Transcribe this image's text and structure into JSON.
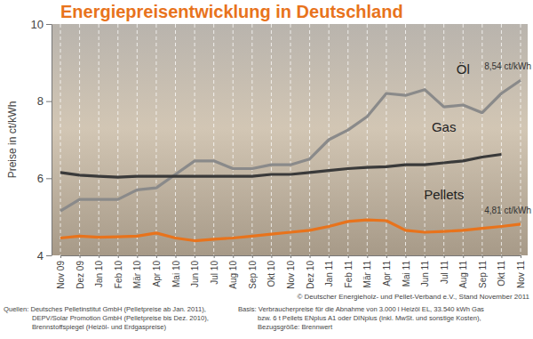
{
  "chart_data": {
    "type": "line",
    "title": "Energiepreisentwicklung in Deutschland",
    "y_label": "Preise in ct/kWh",
    "categories": [
      "Nov 09",
      "Dez 09",
      "Jan 10",
      "Feb 10",
      "Mär 10",
      "Apr 10",
      "Mai 10",
      "Jun 10",
      "Jul 10",
      "Aug 10",
      "Sep 10",
      "Okt 10",
      "Nov 10",
      "Dez 10",
      "Jan 11",
      "Feb 11",
      "Mär 11",
      "Apr 11",
      "Mai 11",
      "Jun 11",
      "Jul 11",
      "Aug 11",
      "Sep 11",
      "Okt 11",
      "Nov 11"
    ],
    "series": [
      {
        "name": "Öl",
        "color": "#8a8a8a",
        "values": [
          5.15,
          5.45,
          5.45,
          5.45,
          5.7,
          5.75,
          6.1,
          6.45,
          6.45,
          6.25,
          6.25,
          6.35,
          6.35,
          6.5,
          7.0,
          7.25,
          7.6,
          8.2,
          8.15,
          8.3,
          7.85,
          7.9,
          7.7,
          8.2,
          8.54
        ]
      },
      {
        "name": "Gas",
        "color": "#3a3a3a",
        "values": [
          6.15,
          6.08,
          6.05,
          6.03,
          6.05,
          6.05,
          6.05,
          6.05,
          6.05,
          6.05,
          6.05,
          6.1,
          6.1,
          6.15,
          6.2,
          6.25,
          6.28,
          6.3,
          6.35,
          6.35,
          6.4,
          6.45,
          6.55,
          6.62,
          null
        ]
      },
      {
        "name": "Pellets",
        "color": "#e8731c",
        "values": [
          4.45,
          4.5,
          4.47,
          4.48,
          4.5,
          4.58,
          4.45,
          4.38,
          4.42,
          4.45,
          4.5,
          4.55,
          4.6,
          4.65,
          4.75,
          4.88,
          4.92,
          4.9,
          4.65,
          4.6,
          4.62,
          4.65,
          4.7,
          4.75,
          4.81
        ]
      }
    ],
    "ylim": [
      4,
      10
    ],
    "yticks": [
      4,
      6,
      8,
      10
    ],
    "grid": true,
    "annotations": [
      "8,54 ct/kWh",
      "4,81 ct/kWh"
    ],
    "copyright": "© Deutscher Energieholz- und Pellet-Verband e.V., Stand November 2011",
    "sources": [
      "Quellen: Deutsches Pelletinstitut GmbH (Pelletpreise ab Jan. 2011),",
      "DEPV/Solar Promotion GmbH (Pelletpreise bis Dez. 2010),",
      "Brennstoffspiegel (Heizöl- und Erdgaspreise)"
    ],
    "basis": [
      "Basis: Verbraucherpreise für die Abnahme von 3.000 l Heizöl EL, 33.540 kWh Gas",
      "bzw. 6 t Pellets ENplus A1 oder DINplus (inkl. MwSt. und sonstige Kosten),",
      "Bezugsgröße: Brennwert"
    ]
  }
}
